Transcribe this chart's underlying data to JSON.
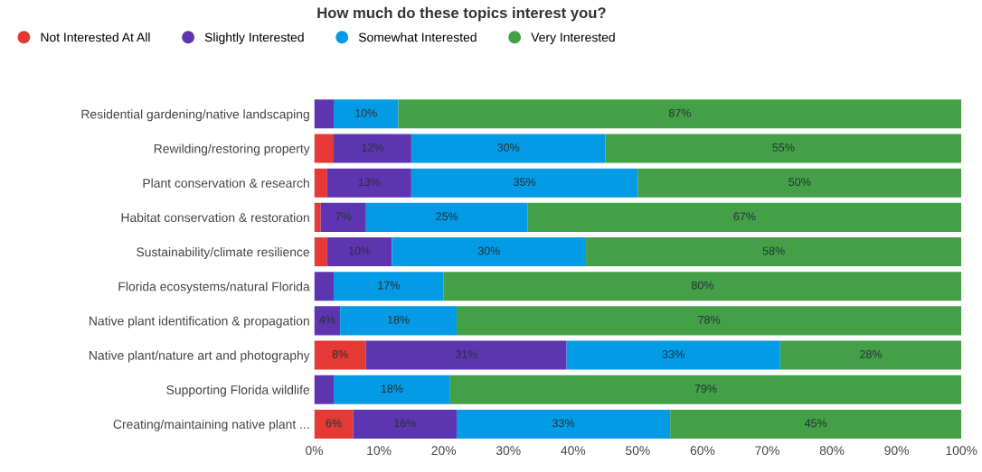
{
  "chart_data": {
    "type": "bar",
    "orientation": "horizontal",
    "stacked": true,
    "title": "How much do these topics interest you?",
    "categories": [
      "Residential gardening/native landscaping",
      "Rewilding/restoring property",
      "Plant conservation & research",
      "Habitat conservation & restoration",
      "Sustainability/climate resilience",
      "Florida ecosystems/natural Florida",
      "Native plant identification & propagation",
      "Native plant/nature art and photography",
      "Supporting Florida wildlife",
      "Creating/maintaining native plant ..."
    ],
    "series": [
      {
        "name": "Not Interested At All",
        "color": "#e53935",
        "values": [
          0,
          3,
          2,
          1,
          2,
          0,
          0,
          8,
          0,
          6
        ],
        "value_labels": [
          null,
          null,
          null,
          null,
          null,
          null,
          null,
          "8%",
          null,
          "6%"
        ]
      },
      {
        "name": "Slightly Interested",
        "color": "#5e35b1",
        "values": [
          3,
          12,
          13,
          7,
          10,
          3,
          4,
          31,
          3,
          16
        ],
        "value_labels": [
          null,
          "12%",
          "13%",
          "7%",
          "10%",
          null,
          "4%",
          "31%",
          null,
          "16%"
        ]
      },
      {
        "name": "Somewhat Interested",
        "color": "#039be5",
        "values": [
          10,
          30,
          35,
          25,
          30,
          17,
          18,
          33,
          18,
          33
        ],
        "value_labels": [
          "10%",
          "30%",
          "35%",
          "25%",
          "30%",
          "17%",
          "18%",
          "33%",
          "18%",
          "33%"
        ]
      },
      {
        "name": "Very Interested",
        "color": "#43a047",
        "values": [
          87,
          55,
          50,
          67,
          58,
          80,
          78,
          28,
          79,
          45
        ],
        "value_labels": [
          "87%",
          "55%",
          "50%",
          "67%",
          "58%",
          "80%",
          "78%",
          "28%",
          "79%",
          "45%"
        ]
      }
    ],
    "xlim": [
      0,
      100
    ],
    "xticks": [
      {
        "value": 0,
        "label": "0%"
      },
      {
        "value": 10,
        "label": "10%"
      },
      {
        "value": 20,
        "label": "20%"
      },
      {
        "value": 30,
        "label": "30%"
      },
      {
        "value": 40,
        "label": "40%"
      },
      {
        "value": 50,
        "label": "50%"
      },
      {
        "value": 60,
        "label": "60%"
      },
      {
        "value": 70,
        "label": "70%"
      },
      {
        "value": 80,
        "label": "80%"
      },
      {
        "value": 90,
        "label": "90%"
      },
      {
        "value": 100,
        "label": "100%"
      }
    ],
    "grid": false,
    "legend": "top left",
    "marker": "circle"
  }
}
